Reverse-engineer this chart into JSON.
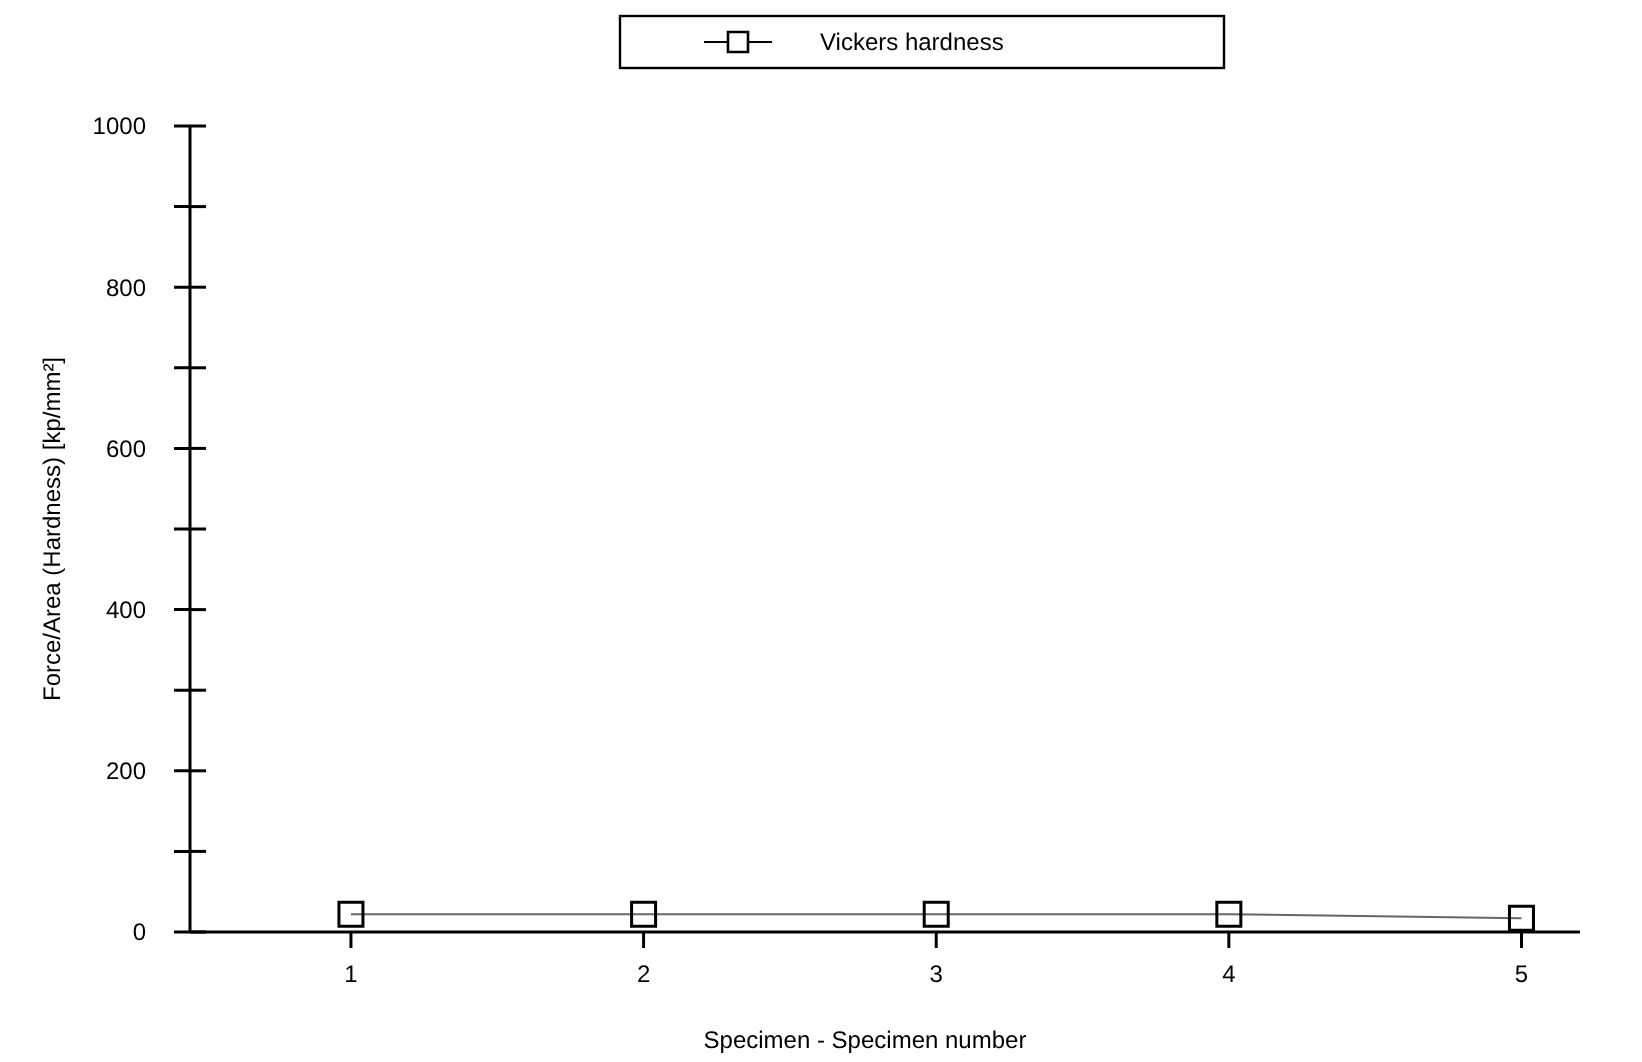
{
  "chart_data": {
    "type": "line",
    "xlabel": "Specimen - Specimen number",
    "ylabel": "Force/Area (Hardness) [kp/mm²]",
    "x": [
      1,
      2,
      3,
      4,
      5
    ],
    "series": [
      {
        "name": "Vickers hardness",
        "color": "#000000",
        "values": [
          22,
          22,
          22,
          22,
          17
        ]
      }
    ],
    "xlim": [
      0.45,
      5.2
    ],
    "xticks": [
      1,
      2,
      3,
      4,
      5
    ],
    "ylim": [
      0,
      1000
    ],
    "yticks": [
      0,
      {
        "value": 100,
        "label": null
      },
      200,
      {
        "value": 300,
        "label": null
      },
      400,
      {
        "value": 500,
        "label": null
      },
      600,
      {
        "value": 700,
        "label": null
      },
      800,
      {
        "value": 900,
        "label": null
      },
      1000
    ],
    "marker": "square",
    "line_style": "solid",
    "legend": "top",
    "grid": false
  }
}
